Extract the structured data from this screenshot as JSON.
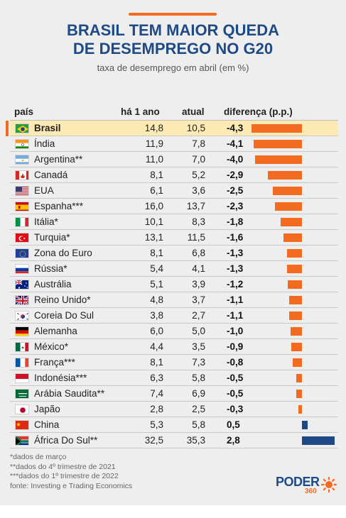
{
  "header": {
    "title_line1": "BRASIL TEM MAIOR QUEDA",
    "title_line2": "DE DESEMPREGO NO G20",
    "subtitle": "taxa de desemprego em abril (em %)"
  },
  "columns": {
    "country": "país",
    "previous": "há 1 ano",
    "current": "atual",
    "difference": "diferença (p.p.)"
  },
  "colors": {
    "accent": "#f26b21",
    "title": "#1e4a86",
    "negative_bar": "#f26b21",
    "positive_bar": "#1d4a87",
    "highlight_row": "#fde9b3"
  },
  "chart_data": {
    "type": "bar",
    "title": "BRASIL TEM MAIOR QUEDA DE DESEMPREGO NO G20",
    "subtitle": "taxa de desemprego em abril (em %)",
    "categories": [
      "Brasil",
      "Índia",
      "Argentina**",
      "Canadá",
      "EUA",
      "Espanha***",
      "Itália*",
      "Turquia*",
      "Zona do Euro",
      "Rússia*",
      "Austrália",
      "Reino Unido*",
      "Coreia Do Sul",
      "Alemanha",
      "México*",
      "França***",
      "Indonésia***",
      "Arábia Saudita**",
      "Japão",
      "China",
      "África Do Sul**"
    ],
    "series": [
      {
        "name": "há 1 ano",
        "values": [
          14.8,
          11.9,
          11.0,
          8.1,
          6.1,
          16.0,
          10.1,
          13.1,
          8.1,
          5.4,
          5.1,
          4.8,
          3.8,
          6.0,
          4.4,
          8.1,
          6.3,
          7.4,
          2.8,
          5.3,
          32.5
        ]
      },
      {
        "name": "atual",
        "values": [
          10.5,
          7.8,
          7.0,
          5.2,
          3.6,
          13.7,
          8.3,
          11.5,
          6.8,
          4.1,
          3.9,
          3.7,
          2.7,
          5.0,
          3.5,
          7.3,
          5.8,
          6.9,
          2.5,
          5.8,
          35.3
        ]
      },
      {
        "name": "diferença (p.p.)",
        "values": [
          -4.3,
          -4.1,
          -4.0,
          -2.9,
          -2.5,
          -2.3,
          -1.8,
          -1.6,
          -1.3,
          -1.3,
          -1.2,
          -1.1,
          -1.1,
          -1.0,
          -0.9,
          -0.8,
          -0.5,
          -0.5,
          -0.3,
          0.5,
          2.8
        ]
      }
    ],
    "display": {
      "previous": [
        "14,8",
        "11,9",
        "11,0",
        "8,1",
        "6,1",
        "16,0",
        "10,1",
        "13,1",
        "8,1",
        "5,4",
        "5,1",
        "4,8",
        "3,8",
        "6,0",
        "4,4",
        "8,1",
        "6,3",
        "7,4",
        "2,8",
        "5,3",
        "32,5"
      ],
      "current": [
        "10,5",
        "7,8",
        "7,0",
        "5,2",
        "3,6",
        "13,7",
        "8,3",
        "11,5",
        "6,8",
        "4,1",
        "3,9",
        "3,7",
        "2,7",
        "5,0",
        "3,5",
        "7,3",
        "5,8",
        "6,9",
        "2,5",
        "5,8",
        "35,3"
      ],
      "difference": [
        "-4,3",
        "-4,1",
        "-4,0",
        "-2,9",
        "-2,5",
        "-2,3",
        "-1,8",
        "-1,6",
        "-1,3",
        "-1,3",
        "-1,2",
        "-1,1",
        "-1,1",
        "-1,0",
        "-0,9",
        "-0,8",
        "-0,5",
        "-0,5",
        "-0,3",
        "0,5",
        "2,8"
      ]
    },
    "flags": [
      "brazil-flag-icon",
      "india-flag-icon",
      "argentina-flag-icon",
      "canada-flag-icon",
      "usa-flag-icon",
      "spain-flag-icon",
      "italy-flag-icon",
      "turkey-flag-icon",
      "eurozone-flag-icon",
      "russia-flag-icon",
      "australia-flag-icon",
      "uk-flag-icon",
      "south-korea-flag-icon",
      "germany-flag-icon",
      "mexico-flag-icon",
      "france-flag-icon",
      "indonesia-flag-icon",
      "saudi-arabia-flag-icon",
      "japan-flag-icon",
      "china-flag-icon",
      "south-africa-flag-icon"
    ],
    "highlight_index": 0,
    "bar_baseline_side": "negative bars extend left from zero line, positive bars extend right"
  },
  "footnotes": [
    "*dados de março",
    "**dados do 4º trimestre de 2021",
    "***dados do 1º trimestre de 2022",
    "fonte: Investing e Trading Economics"
  ],
  "logo": {
    "name": "PODER",
    "sub": "360"
  }
}
